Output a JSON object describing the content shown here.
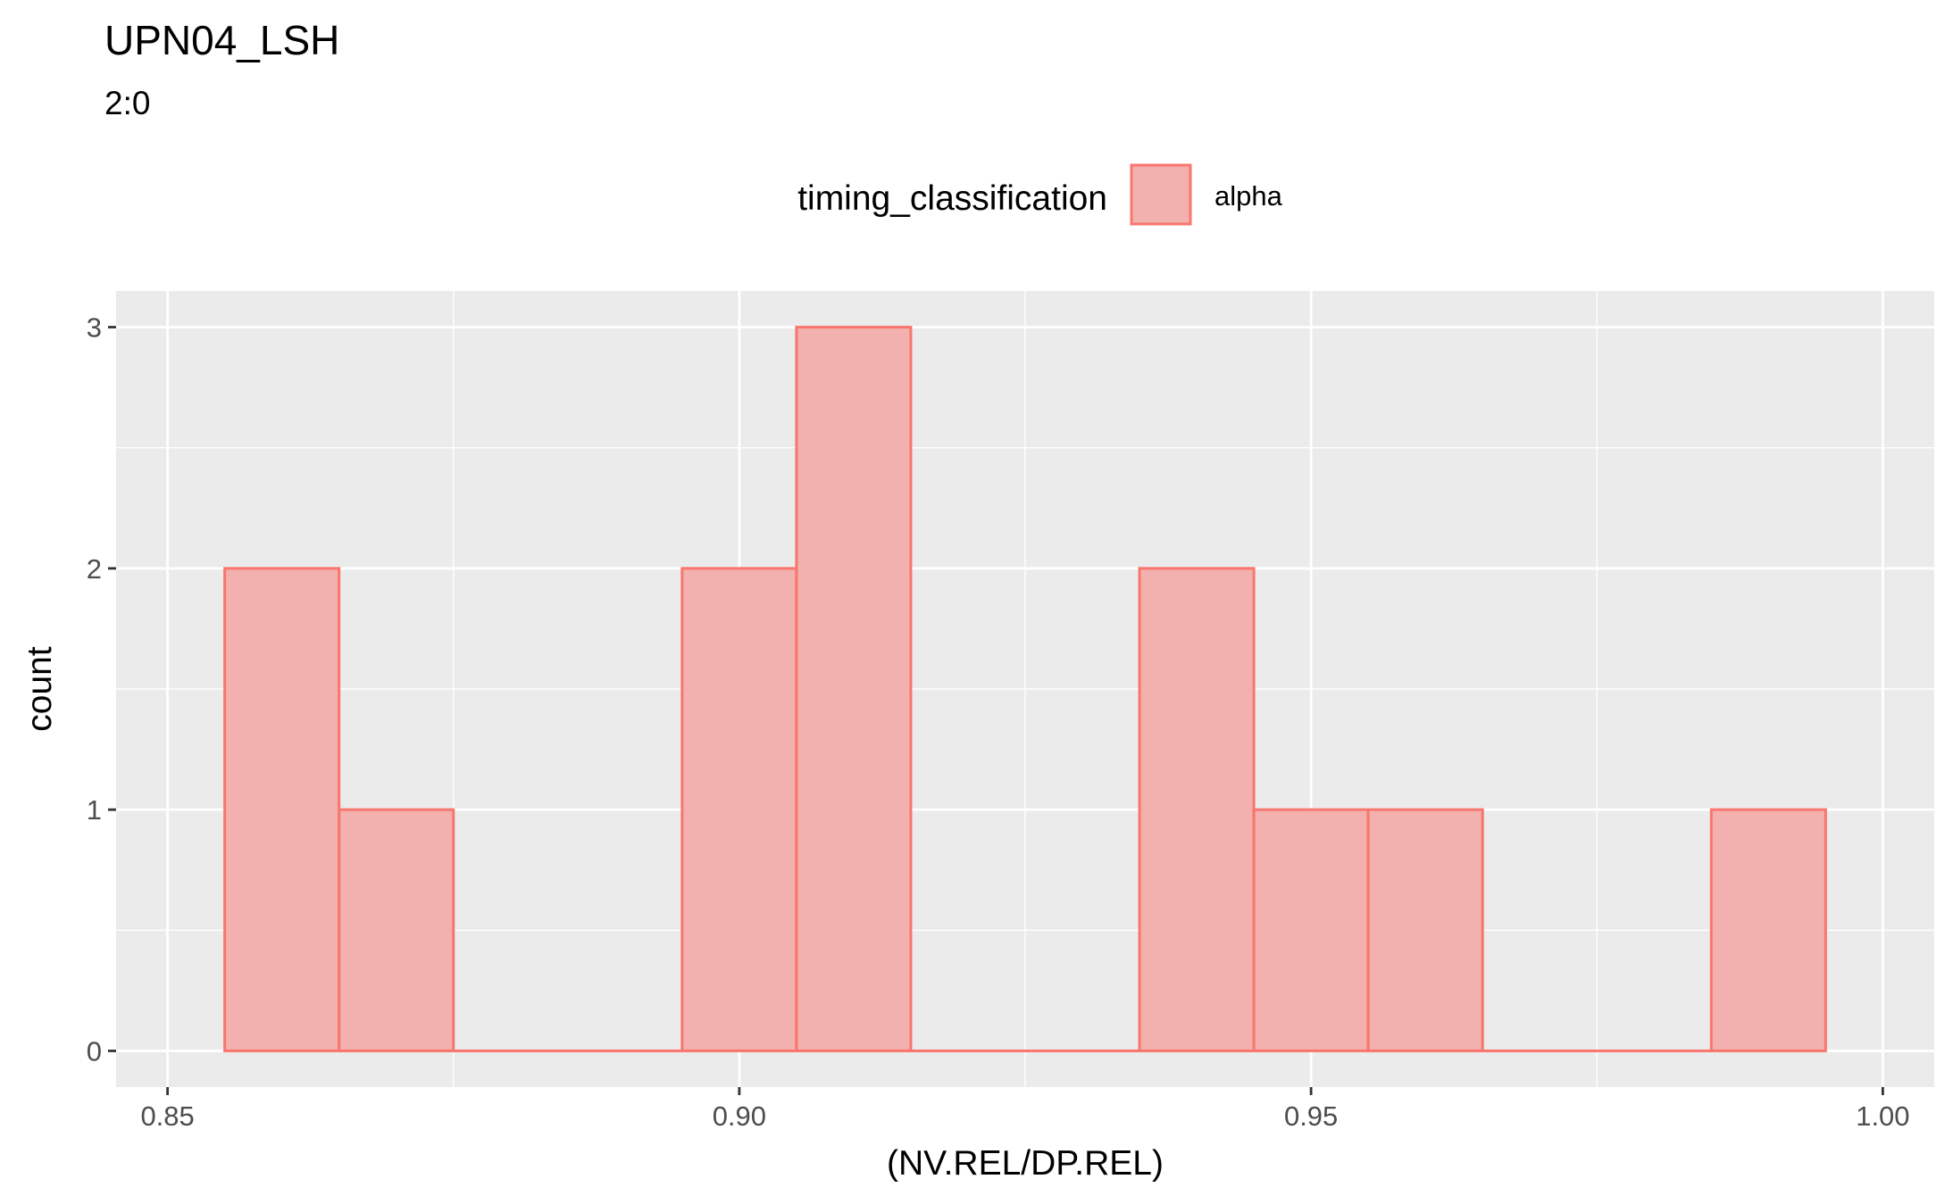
{
  "chart_data": {
    "type": "bar",
    "title": "UPN04_LSH",
    "subtitle": "2:0",
    "xlabel": "(NV.REL/DP.REL)",
    "ylabel": "count",
    "xlim": [
      0.8455,
      1.0045
    ],
    "ylim": [
      -0.15,
      3.15
    ],
    "x_ticks": [
      0.85,
      0.9,
      0.95,
      1.0
    ],
    "x_tick_labels": [
      "0.85",
      "0.90",
      "0.95",
      "1.00"
    ],
    "y_ticks": [
      0,
      1,
      2,
      3
    ],
    "y_tick_labels": [
      "0",
      "1",
      "2",
      "3"
    ],
    "grid": true,
    "legend": {
      "title": "timing_classification",
      "position": "top",
      "entries": [
        "alpha"
      ]
    },
    "fill_color": "#F2B0AE",
    "edge_color": "#F8766D",
    "panel_color": "#EBEBEB",
    "bins": [
      {
        "x0": 0.855,
        "x1": 0.865,
        "count": 2
      },
      {
        "x0": 0.865,
        "x1": 0.875,
        "count": 1
      },
      {
        "x0": 0.875,
        "x1": 0.885,
        "count": 0
      },
      {
        "x0": 0.885,
        "x1": 0.895,
        "count": 0
      },
      {
        "x0": 0.895,
        "x1": 0.905,
        "count": 2
      },
      {
        "x0": 0.905,
        "x1": 0.915,
        "count": 3
      },
      {
        "x0": 0.915,
        "x1": 0.925,
        "count": 0
      },
      {
        "x0": 0.925,
        "x1": 0.935,
        "count": 0
      },
      {
        "x0": 0.935,
        "x1": 0.945,
        "count": 2
      },
      {
        "x0": 0.945,
        "x1": 0.955,
        "count": 1
      },
      {
        "x0": 0.955,
        "x1": 0.965,
        "count": 1
      },
      {
        "x0": 0.965,
        "x1": 0.975,
        "count": 0
      },
      {
        "x0": 0.975,
        "x1": 0.985,
        "count": 0
      },
      {
        "x0": 0.985,
        "x1": 0.995,
        "count": 1
      }
    ]
  }
}
